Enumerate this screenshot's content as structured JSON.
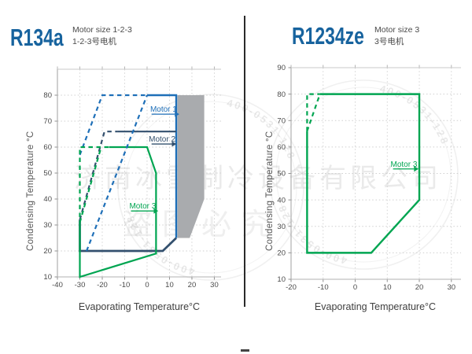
{
  "left_panel": {
    "title": "R134a",
    "subtitle_en": "Motor size 1-2-3",
    "subtitle_cn": "1-2-3号电机",
    "xlabel": "Evaporating Temperature°C",
    "ylabel": "Condensing Temperature °C"
  },
  "right_panel": {
    "title": "R1234ze",
    "subtitle_en": "Motor size 3",
    "subtitle_cn": "3号电机",
    "xlabel": "Evaporating Temperature°C",
    "ylabel": "Condensing Temperature °C"
  },
  "watermark": {
    "company": "济南冰雪制冷设备有限公司",
    "phone": "400-0531-128",
    "notice": "盗图必究"
  },
  "colors": {
    "title_blue": "#17639E",
    "motor1_blue": "#1E6FB8",
    "motor2_navy": "#33506E",
    "motor3_green": "#00A551",
    "shaded_gray": "#A9ABAE"
  },
  "chart_data": [
    {
      "type": "line",
      "title": "R134a",
      "xlabel": "Evaporating Temperature°C",
      "ylabel": "Condensing Temperature °C",
      "xlim": [
        -40,
        33
      ],
      "ylim": [
        10,
        90
      ],
      "xticks": [
        -40,
        -30,
        -20,
        -10,
        0,
        10,
        20,
        30
      ],
      "yticks": [
        10,
        20,
        30,
        40,
        50,
        60,
        70,
        80
      ],
      "grid": true,
      "shaded_region": {
        "color": "#A9ABAE",
        "points": [
          [
            13.5,
            80
          ],
          [
            25.5,
            80
          ],
          [
            25.5,
            40
          ],
          [
            19,
            25
          ],
          [
            13.5,
            25
          ]
        ]
      },
      "series": [
        {
          "name": "motor-1-envelope-solid",
          "color": "#1E6FB8",
          "dash": false,
          "width": 2.4,
          "points": [
            [
              0,
              80
            ],
            [
              13,
              80
            ],
            [
              13,
              25
            ]
          ]
        },
        {
          "name": "motor-1-2-bottom-left-solid",
          "color": "#33506E",
          "dash": false,
          "width": 2.8,
          "points": [
            [
              -30,
              32
            ],
            [
              -30,
              20
            ],
            [
              7,
              20
            ],
            [
              13,
              25
            ]
          ]
        },
        {
          "name": "motor-2-top-solid",
          "color": "#33506E",
          "dash": false,
          "width": 2.2,
          "points": [
            [
              -13,
              66
            ],
            [
              13,
              66
            ]
          ]
        },
        {
          "name": "motor-3-envelope-solid",
          "color": "#00A551",
          "dash": false,
          "width": 2.2,
          "points": [
            [
              -17,
              60
            ],
            [
              0,
              60
            ],
            [
              4,
              50
            ],
            [
              4,
              19
            ],
            [
              -30,
              10
            ],
            [
              -30,
              30
            ]
          ]
        },
        {
          "name": "motor-1-extended-dashed",
          "color": "#1E6FB8",
          "dash": true,
          "width": 2.2,
          "points": [
            [
              -30,
              57
            ],
            [
              -20,
              80
            ],
            [
              0,
              80
            ]
          ]
        },
        {
          "name": "motor-1-diagonal-dashed",
          "color": "#1E6FB8",
          "dash": true,
          "width": 2.2,
          "points": [
            [
              -27,
              20
            ],
            [
              0,
              80
            ]
          ]
        },
        {
          "name": "motor-2-extended-dashed",
          "color": "#33506E",
          "dash": true,
          "width": 2.2,
          "points": [
            [
              -30,
              32
            ],
            [
              -19,
              66
            ],
            [
              -13,
              66
            ]
          ]
        },
        {
          "name": "motor-3-extended-dashed",
          "color": "#00A551",
          "dash": true,
          "width": 2.2,
          "points": [
            [
              -30,
              30
            ],
            [
              -30,
              60
            ],
            [
              -17,
              60
            ]
          ]
        },
        {
          "name": "motor-3-diagonal-dashed",
          "color": "#00A551",
          "dash": true,
          "width": 2.2,
          "points": [
            [
              -30,
              31
            ],
            [
              -20.5,
              60
            ]
          ]
        }
      ],
      "annotations": [
        {
          "text": "Motor 1",
          "color": "#1E6FB8",
          "y": 72.7,
          "x1": 2,
          "x2": 12.7
        },
        {
          "text": "Motor 2",
          "color": "#33506E",
          "y": 61.2,
          "x1": 2,
          "x2": 11.4
        },
        {
          "text": "Motor 3",
          "color": "#00A551",
          "y": 35.4,
          "x1": -7.2,
          "x2": 3.3
        }
      ]
    },
    {
      "type": "line",
      "title": "R1234ze",
      "xlabel": "Evaporating Temperature°C",
      "ylabel": "Condensing Temperature °C",
      "xlim": [
        -20,
        33
      ],
      "ylim": [
        10,
        90
      ],
      "xticks": [
        -20,
        -10,
        0,
        10,
        20,
        30
      ],
      "yticks": [
        10,
        20,
        30,
        40,
        50,
        60,
        70,
        80,
        90
      ],
      "grid": true,
      "series": [
        {
          "name": "motor-3-envelope-solid",
          "color": "#00A551",
          "dash": false,
          "width": 2.4,
          "points": [
            [
              -11,
              80
            ],
            [
              20,
              80
            ],
            [
              20,
              40
            ],
            [
              5,
              20
            ],
            [
              -15,
              20
            ],
            [
              -15,
              66
            ]
          ]
        },
        {
          "name": "motor-3-extended-dashed",
          "color": "#00A551",
          "dash": true,
          "width": 2.2,
          "points": [
            [
              -15,
              66
            ],
            [
              -15,
              80
            ],
            [
              -11,
              80
            ]
          ]
        },
        {
          "name": "motor-3-diagonal-dashed",
          "color": "#00A551",
          "dash": true,
          "width": 2.2,
          "points": [
            [
              -15,
              66
            ],
            [
              -11,
              80
            ]
          ]
        }
      ],
      "annotations": [
        {
          "text": "Motor 3",
          "color": "#00A551",
          "y": 51.7,
          "x1": 11.8,
          "x2": 18.6
        }
      ]
    }
  ]
}
